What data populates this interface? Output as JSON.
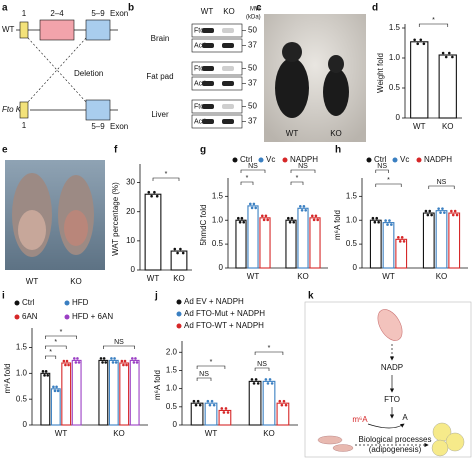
{
  "panel_labels": [
    "a",
    "b",
    "c",
    "d",
    "e",
    "f",
    "g",
    "h",
    "i",
    "j",
    "k"
  ],
  "gene_diagram": {
    "wt_label": "WT",
    "exons": [
      "1",
      "2–4",
      "5–9"
    ],
    "exon_label": "Exon",
    "deletion": "Deletion",
    "ko_label": "Fto KO",
    "ko_exons": [
      "1",
      "5–9"
    ],
    "ko_exon_label": "Exon"
  },
  "blot": {
    "columns": [
      "WT",
      "KO"
    ],
    "mw_label": [
      "MW",
      "(kDa)"
    ],
    "tissues": [
      {
        "name": "Brain",
        "bands": [
          "Fto",
          "Actin"
        ],
        "markers": [
          "50",
          "37"
        ]
      },
      {
        "name": "Fat pad",
        "bands": [
          "Fto",
          "Actin"
        ],
        "markers": [
          "50",
          "37"
        ]
      },
      {
        "name": "Liver",
        "bands": [
          "Fto",
          "Actin"
        ],
        "markers": [
          "50",
          "37"
        ]
      }
    ]
  },
  "photo_c": {
    "labels": [
      "WT",
      "KO"
    ]
  },
  "photo_e": {
    "labels": [
      "WT",
      "KO"
    ]
  },
  "chart_data": [
    {
      "type": "bar",
      "ylabel": "Weight fold",
      "categories": [
        "WT",
        "KO"
      ],
      "values": [
        1.27,
        1.05
      ],
      "color": "#111111",
      "ylim": [
        0,
        1.5
      ],
      "yticks": [
        0,
        0.5,
        {
          "value": 1,
          "label": "1.0"
        },
        1.5
      ],
      "annotations": [
        "*"
      ]
    },
    {
      "type": "bar",
      "ylabel": "WAT percentage (%)",
      "categories": [
        "WT",
        "KO"
      ],
      "values": [
        26,
        6.5
      ],
      "color": "#111111",
      "ylim": [
        0,
        35
      ],
      "yticks": [
        0,
        10,
        20,
        30
      ],
      "annotations": [
        "*"
      ]
    },
    {
      "type": "bar",
      "ylabel": "5hmdC fold",
      "categories": [
        "WT",
        "KO"
      ],
      "series": [
        {
          "name": "Ctrl",
          "color": "#111111",
          "values": [
            1.0,
            1.0
          ]
        },
        {
          "name": "Vc",
          "color": "#3a7fc1",
          "values": [
            1.3,
            1.25
          ]
        },
        {
          "name": "NADPH",
          "color": "#d62728",
          "values": [
            1.05,
            1.05
          ]
        }
      ],
      "ylim": [
        0,
        1.8
      ],
      "yticks": [
        0,
        0.5,
        {
          "value": 1,
          "label": "1.0"
        },
        1.5
      ],
      "annotations": [
        "NS",
        "*",
        "NS",
        "*"
      ]
    },
    {
      "type": "bar",
      "ylabel": "m⁶A fold",
      "categories": [
        "WT",
        "KO"
      ],
      "series": [
        {
          "name": "Ctrl",
          "color": "#111111",
          "values": [
            1.0,
            1.15
          ]
        },
        {
          "name": "Vc",
          "color": "#3a7fc1",
          "values": [
            0.95,
            1.2
          ]
        },
        {
          "name": "NADPH",
          "color": "#d62728",
          "values": [
            0.6,
            1.15
          ]
        }
      ],
      "ylim": [
        0,
        1.8
      ],
      "yticks": [
        0,
        0.5,
        {
          "value": 1,
          "label": "1.0"
        },
        1.5
      ],
      "annotations": [
        "NS",
        "*",
        "NS"
      ]
    },
    {
      "type": "bar",
      "ylabel": "m⁶A fold",
      "categories": [
        "WT",
        "KO"
      ],
      "series": [
        {
          "name": "Ctrl",
          "color": "#111111",
          "values": [
            1.0,
            1.25
          ]
        },
        {
          "name": "HFD",
          "color": "#3a7fc1",
          "values": [
            0.7,
            1.25
          ]
        },
        {
          "name": "6AN",
          "color": "#d62728",
          "values": [
            1.2,
            1.2
          ]
        },
        {
          "name": "HFD + 6AN",
          "color": "#9b3fc4",
          "values": [
            1.25,
            1.25
          ]
        }
      ],
      "ylim": [
        0,
        1.8
      ],
      "yticks": [
        0,
        0.5,
        {
          "value": 1,
          "label": "1.0"
        },
        1.5
      ],
      "annotations": [
        "*",
        "*",
        "*",
        "NS"
      ]
    },
    {
      "type": "bar",
      "ylabel": "m⁶A fold",
      "categories": [
        "WT",
        "KO"
      ],
      "series": [
        {
          "name": "Ad EV + NADPH",
          "color": "#111111",
          "values": [
            0.6,
            1.2
          ]
        },
        {
          "name": "Ad FTO-Mut + NADPH",
          "color": "#3a7fc1",
          "values": [
            0.6,
            1.2
          ]
        },
        {
          "name": "Ad FTO-WT + NADPH",
          "color": "#d62728",
          "values": [
            0.4,
            0.6
          ]
        }
      ],
      "ylim": [
        0,
        2.2
      ],
      "yticks": [
        0,
        0.5,
        {
          "value": 1,
          "label": "1.0"
        },
        1.5,
        {
          "value": 2,
          "label": "2.0"
        }
      ],
      "annotations": [
        "NS",
        "*",
        "NS",
        "*"
      ]
    }
  ],
  "pathway": {
    "nodes": [
      "NADP",
      "FTO",
      "m⁶A",
      "A",
      "Biological processes",
      "(adipogenesis)"
    ]
  }
}
